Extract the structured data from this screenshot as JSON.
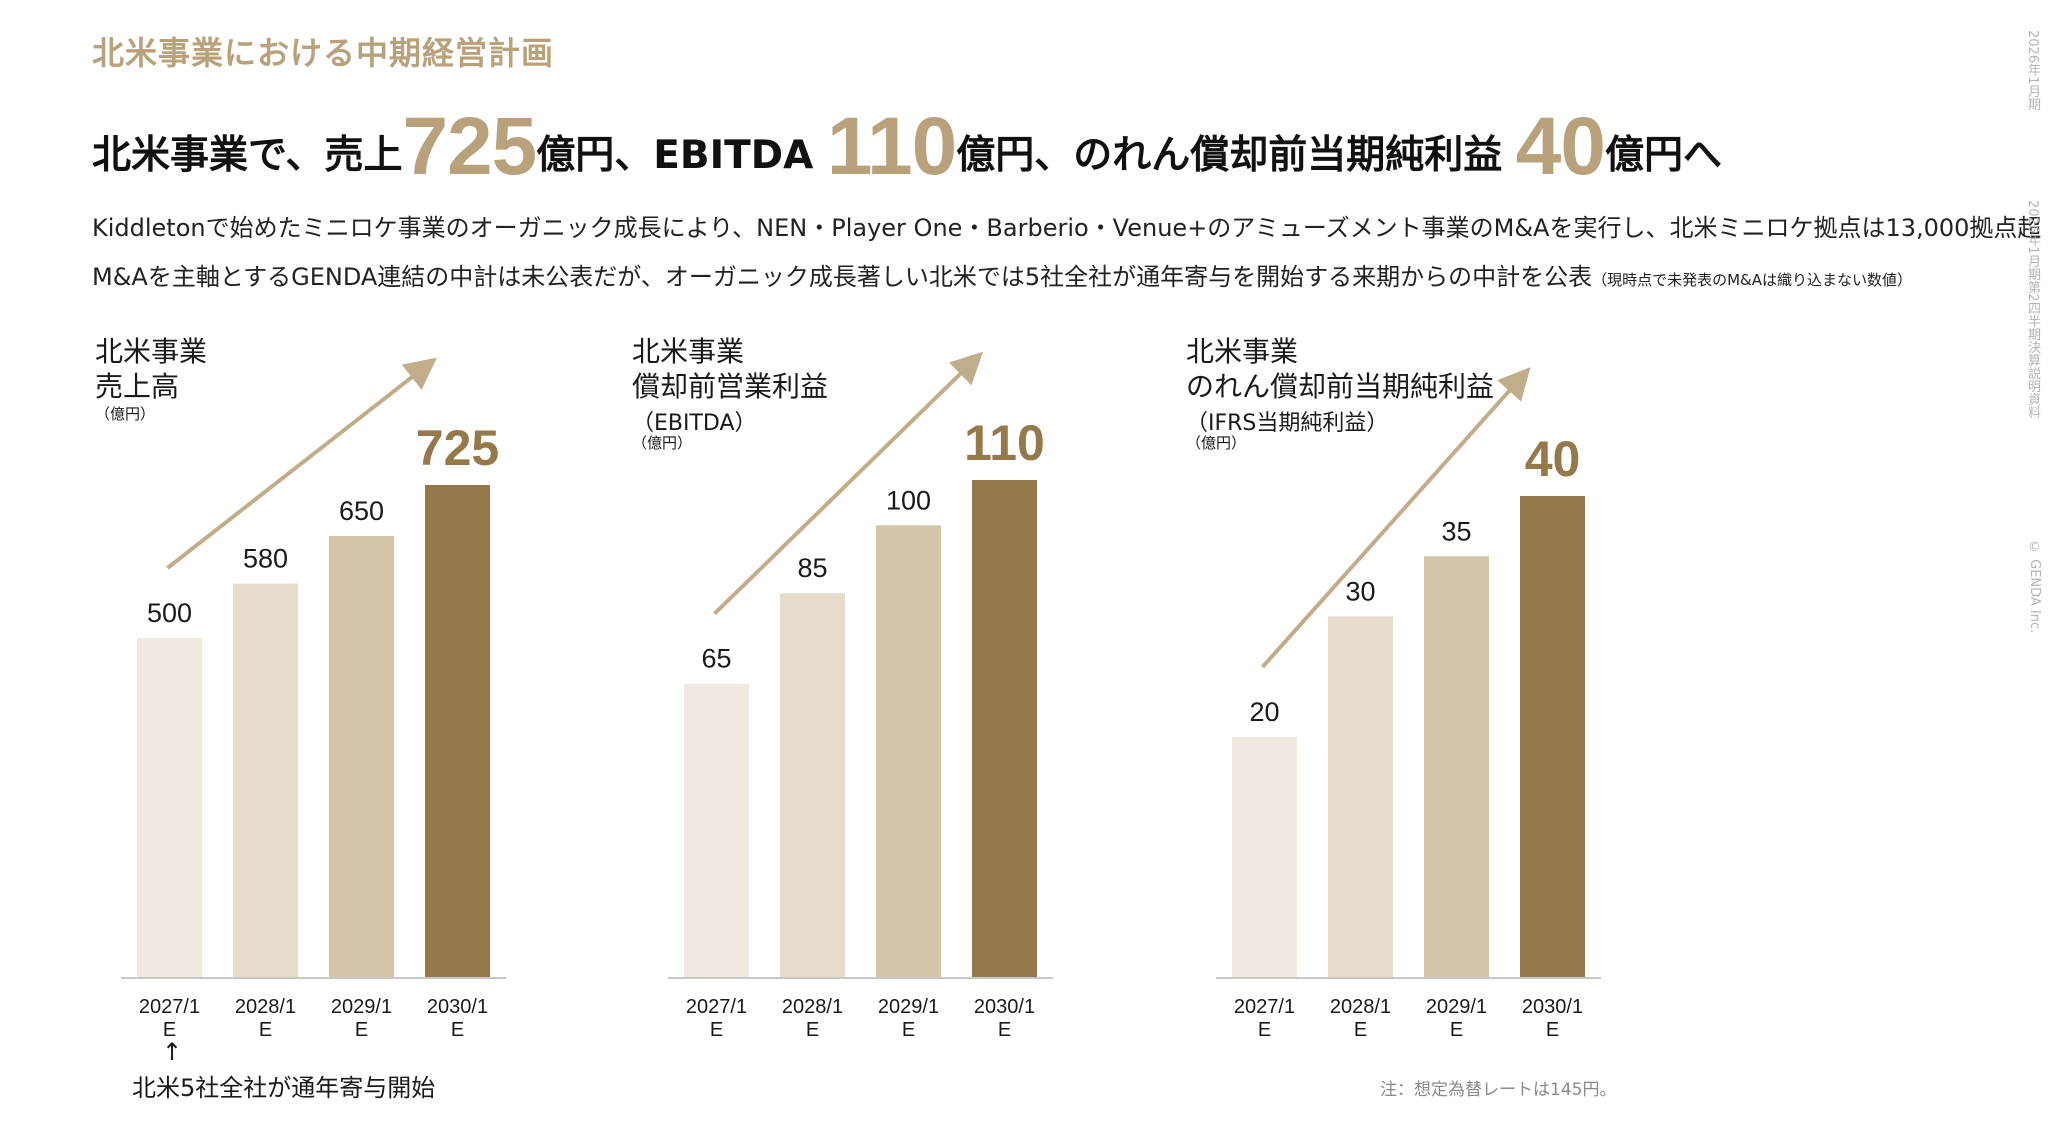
{
  "page": {
    "section_title": "北米事業における中期経営計画",
    "headline": {
      "part1": "北米事業で、売上",
      "big1": "725",
      "part2": "億円、EBITDA ",
      "big2": "110",
      "part3": "億円、のれん償却前当期純利益 ",
      "big3": "40",
      "part4": "億円へ"
    },
    "desc_line1": "Kiddletonで始めたミニロケ事業のオーガニック成長により、NEN・Player One・Barberio・Venue+のアミューズメント事業のM&Aを実行し、北米ミニロケ拠点は13,000拠点超",
    "desc_line2": "M&Aを主軸とするGENDA連結の中計は未公表だが、オーガニック成長著しい北米では5社全社が通年寄与を開始する来期からの中計を公表",
    "desc_line2_note": "（現時点で未発表のM&Aは織り込まない数値）",
    "side_text_1": "2026年1月期",
    "side_text_2": "2026年1月期第2四半期決算説明資料",
    "side_text_3": "© GENDA Inc.",
    "arrow_symbol": "↑",
    "bottom_note": "北米5社全社が通年寄与開始",
    "footnote": "注：想定為替レートは145円。"
  },
  "chart_data": [
    {
      "type": "bar",
      "title_line1": "北米事業",
      "title_line2": "売上高",
      "subtitle": "",
      "unit": "（億円）",
      "categories": [
        "2027/1 E",
        "2028/1 E",
        "2029/1 E",
        "2030/1 E"
      ],
      "values": [
        500,
        580,
        650,
        725
      ],
      "value_labels": [
        "500",
        "580",
        "650",
        "725"
      ],
      "ylim": [
        0,
        725
      ],
      "colors": [
        "#f0e9df",
        "#e5dccb",
        "#d5c5a9",
        "#96794a"
      ]
    },
    {
      "type": "bar",
      "title_line1": "北米事業",
      "title_line2": "償却前営業利益",
      "subtitle": "（EBITDA）",
      "unit": "（億円）",
      "categories": [
        "2027/1 E",
        "2028/1 E",
        "2029/1 E",
        "2030/1 E"
      ],
      "values": [
        65,
        85,
        100,
        110
      ],
      "value_labels": [
        "65",
        "85",
        "100",
        "110"
      ],
      "ylim": [
        0,
        110
      ],
      "colors": [
        "#f0e9df",
        "#e5dccb",
        "#d5c5a9",
        "#96794a"
      ]
    },
    {
      "type": "bar",
      "title_line1": "北米事業",
      "title_line2": "のれん償却前当期純利益",
      "subtitle": "（IFRS当期純利益）",
      "unit": "（億円）",
      "categories": [
        "2027/1 E",
        "2028/1 E",
        "2029/1 E",
        "2030/1 E"
      ],
      "values": [
        20,
        30,
        35,
        40
      ],
      "value_labels": [
        "20",
        "30",
        "35",
        "40"
      ],
      "ylim": [
        0,
        40
      ],
      "colors": [
        "#f0e9df",
        "#e5dccb",
        "#d5c5a9",
        "#96794a"
      ]
    }
  ]
}
